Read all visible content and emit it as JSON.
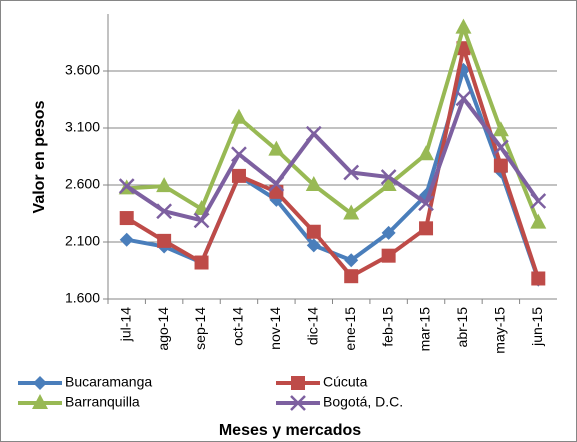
{
  "chart_data": {
    "type": "line",
    "y_label": "Valor en pesos",
    "x_label": "Meses y mercados",
    "categories": [
      "jul-14",
      "ago-14",
      "sep-14",
      "oct-14",
      "nov-14",
      "dic-14",
      "ene-15",
      "feb-15",
      "mar-15",
      "abr-15",
      "may-15",
      "jun-15"
    ],
    "series": [
      {
        "name": "Bucaramanga",
        "color": "#4a7ebb",
        "marker": "diamond",
        "values": [
          2120,
          2060,
          1920,
          2680,
          2470,
          2070,
          1940,
          2180,
          2510,
          3610,
          2720,
          1770
        ]
      },
      {
        "name": "Cúcuta",
        "color": "#be4b48",
        "marker": "square",
        "values": [
          2310,
          2110,
          1920,
          2680,
          2540,
          2190,
          1800,
          1980,
          2220,
          3800,
          2770,
          1780
        ]
      },
      {
        "name": "Barranquilla",
        "color": "#98b954",
        "marker": "triangle",
        "values": [
          2570,
          2590,
          2390,
          3190,
          2910,
          2600,
          2350,
          2600,
          2870,
          3980,
          3080,
          2270
        ]
      },
      {
        "name": "Bogotá, D.C.",
        "color": "#7d60a0",
        "marker": "cross",
        "values": [
          2590,
          2370,
          2290,
          2870,
          2610,
          3050,
          2710,
          2670,
          2440,
          3360,
          2930,
          2460
        ]
      }
    ],
    "ylim": [
      1600,
      4100
    ],
    "yticks": [
      {
        "value": 1600,
        "label": "1.600"
      },
      {
        "value": 2100,
        "label": "2.100"
      },
      {
        "value": 2600,
        "label": "2.600"
      },
      {
        "value": 3100,
        "label": "3.100"
      },
      {
        "value": 3600,
        "label": "3.600"
      }
    ],
    "grid": true
  }
}
